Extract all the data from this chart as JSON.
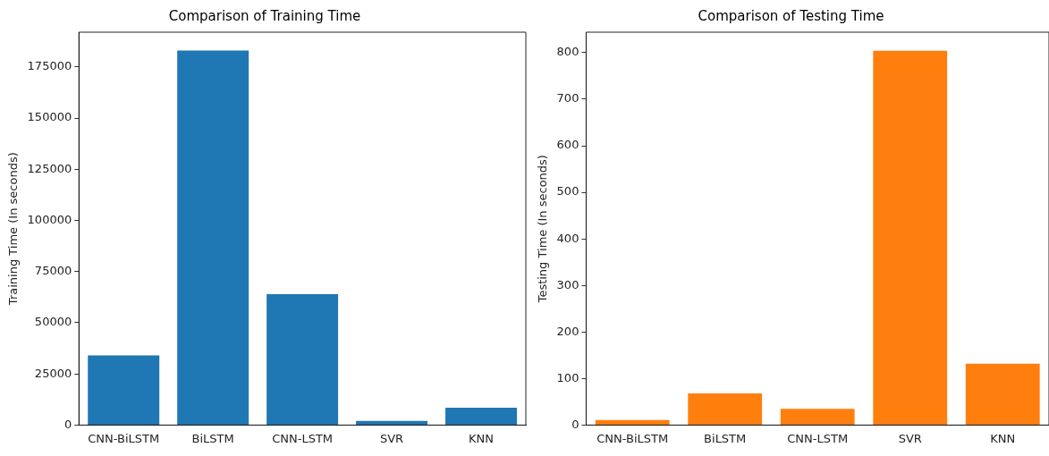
{
  "chart_data": [
    {
      "type": "bar",
      "title": "Comparison of Training Time",
      "ylabel": "Training Time (In seconds)",
      "categories": [
        "CNN-BiLSTM",
        "BiLSTM",
        "CNN-LSTM",
        "SVR",
        "KNN"
      ],
      "values": [
        34000,
        183000,
        64000,
        2000,
        8500
      ],
      "color": "#1f77b4",
      "ylim": [
        0,
        192000
      ],
      "yticks": [
        0,
        25000,
        50000,
        75000,
        100000,
        125000,
        150000,
        175000
      ],
      "grid": false,
      "legend": false
    },
    {
      "type": "bar",
      "title": "Comparison of Testing Time",
      "ylabel": "Testing Time (In seconds)",
      "categories": [
        "CNN-BiLSTM",
        "BiLSTM",
        "CNN-LSTM",
        "SVR",
        "KNN"
      ],
      "values": [
        11,
        68,
        35,
        804,
        132
      ],
      "color": "#ff7f0e",
      "ylim": [
        0,
        844
      ],
      "yticks": [
        0,
        100,
        200,
        300,
        400,
        500,
        600,
        700,
        800
      ],
      "grid": false,
      "legend": false
    }
  ]
}
